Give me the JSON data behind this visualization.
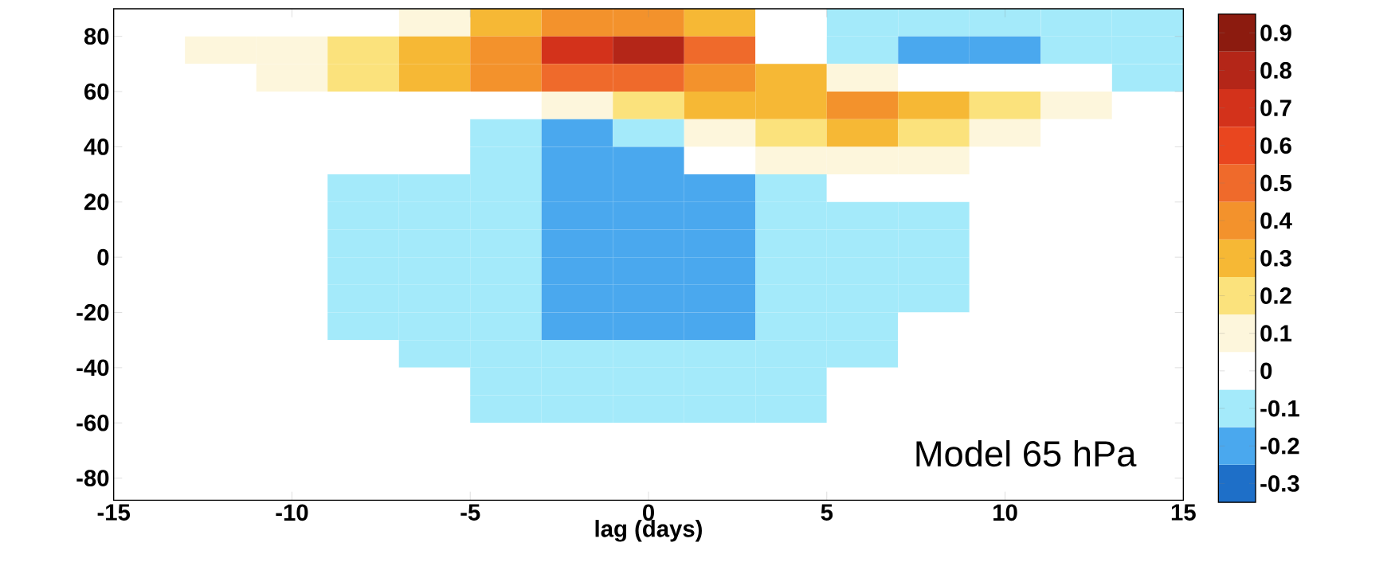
{
  "chart_data": {
    "type": "heatmap",
    "xlabel": "lag (days)",
    "annotations": [
      "Model 65 hPa"
    ],
    "x": [
      -14,
      -12,
      -10,
      -8,
      -6,
      -4,
      -2,
      0,
      2,
      4,
      6,
      8,
      10,
      12,
      14
    ],
    "y": [
      85,
      75,
      65,
      55,
      45,
      35,
      25,
      15,
      5,
      -5,
      -15,
      -25,
      -35,
      -45,
      -55,
      -65,
      -75,
      -85
    ],
    "xlim": [
      -15,
      15
    ],
    "ylim": [
      -88,
      90
    ],
    "xticks": [
      -15,
      -10,
      -5,
      0,
      5,
      10,
      15
    ],
    "yticks": [
      -80,
      -60,
      -40,
      -20,
      0,
      20,
      40,
      60,
      80
    ],
    "clim": [
      -0.35,
      0.95
    ],
    "cticks": [
      -0.3,
      -0.2,
      -0.1,
      0,
      0.1,
      0.2,
      0.3,
      0.4,
      0.5,
      0.6,
      0.7,
      0.8,
      0.9
    ],
    "colors": [
      "#1e6fc8",
      "#4aa8ee",
      "#a4eafa",
      "#ffffff",
      "#fdf6dc",
      "#fbe27c",
      "#f6b835",
      "#f3922c",
      "#ef6a2b",
      "#e9461f",
      "#d3321b",
      "#b42618",
      "#8c1b0f"
    ],
    "cells": [
      [
        0,
        0,
        0,
        0,
        0.1,
        0.3,
        0.4,
        0.4,
        0.3,
        0,
        -0.1,
        -0.1,
        -0.1,
        -0.1,
        -0.1
      ],
      [
        0,
        0.1,
        0.1,
        0.2,
        0.3,
        0.4,
        0.7,
        0.8,
        0.5,
        0,
        -0.1,
        -0.2,
        -0.2,
        -0.1,
        -0.1
      ],
      [
        0,
        0,
        0.1,
        0.2,
        0.3,
        0.4,
        0.5,
        0.5,
        0.4,
        0.3,
        0.1,
        0,
        0,
        0,
        -0.1
      ],
      [
        0,
        0,
        0,
        0,
        0,
        0,
        0.1,
        0.2,
        0.3,
        0.3,
        0.4,
        0.3,
        0.2,
        0.1,
        0
      ],
      [
        0,
        0,
        0,
        0,
        0,
        -0.1,
        -0.2,
        -0.1,
        0.1,
        0.2,
        0.3,
        0.2,
        0.1,
        0,
        0
      ],
      [
        0,
        0,
        0,
        0,
        0,
        -0.1,
        -0.2,
        -0.2,
        0,
        0.1,
        0.1,
        0.1,
        0,
        0,
        0
      ],
      [
        0,
        0,
        0,
        -0.1,
        -0.1,
        -0.1,
        -0.2,
        -0.2,
        -0.2,
        -0.1,
        0,
        0,
        0,
        0,
        0
      ],
      [
        0,
        0,
        0,
        -0.1,
        -0.1,
        -0.1,
        -0.2,
        -0.2,
        -0.2,
        -0.1,
        -0.1,
        -0.1,
        0,
        0,
        0
      ],
      [
        0,
        0,
        0,
        -0.1,
        -0.1,
        -0.1,
        -0.2,
        -0.2,
        -0.2,
        -0.1,
        -0.1,
        -0.1,
        0,
        0,
        0
      ],
      [
        0,
        0,
        0,
        -0.1,
        -0.1,
        -0.1,
        -0.2,
        -0.2,
        -0.2,
        -0.1,
        -0.1,
        -0.1,
        0,
        0,
        0
      ],
      [
        0,
        0,
        0,
        -0.1,
        -0.1,
        -0.1,
        -0.2,
        -0.2,
        -0.2,
        -0.1,
        -0.1,
        -0.1,
        0,
        0,
        0
      ],
      [
        0,
        0,
        0,
        -0.1,
        -0.1,
        -0.1,
        -0.2,
        -0.2,
        -0.2,
        -0.1,
        -0.1,
        0,
        0,
        0,
        0
      ],
      [
        0,
        0,
        0,
        0,
        -0.1,
        -0.1,
        -0.1,
        -0.1,
        -0.1,
        -0.1,
        -0.1,
        0,
        0,
        0,
        0
      ],
      [
        0,
        0,
        0,
        0,
        0,
        -0.1,
        -0.1,
        -0.1,
        -0.1,
        -0.1,
        0,
        0,
        0,
        0,
        0
      ],
      [
        0,
        0,
        0,
        0,
        0,
        -0.1,
        -0.1,
        -0.1,
        -0.1,
        -0.1,
        0,
        0,
        0,
        0,
        0
      ],
      [
        0,
        0,
        0,
        0,
        0,
        0,
        0,
        0,
        0,
        0,
        0,
        0,
        0,
        0,
        0
      ],
      [
        0,
        0,
        0,
        0,
        0,
        0,
        0,
        0,
        0,
        0,
        0,
        0,
        0,
        0,
        0
      ],
      [
        0,
        0,
        0,
        0,
        0,
        0,
        0,
        0,
        0,
        0,
        0,
        0,
        0,
        0,
        0
      ]
    ]
  }
}
